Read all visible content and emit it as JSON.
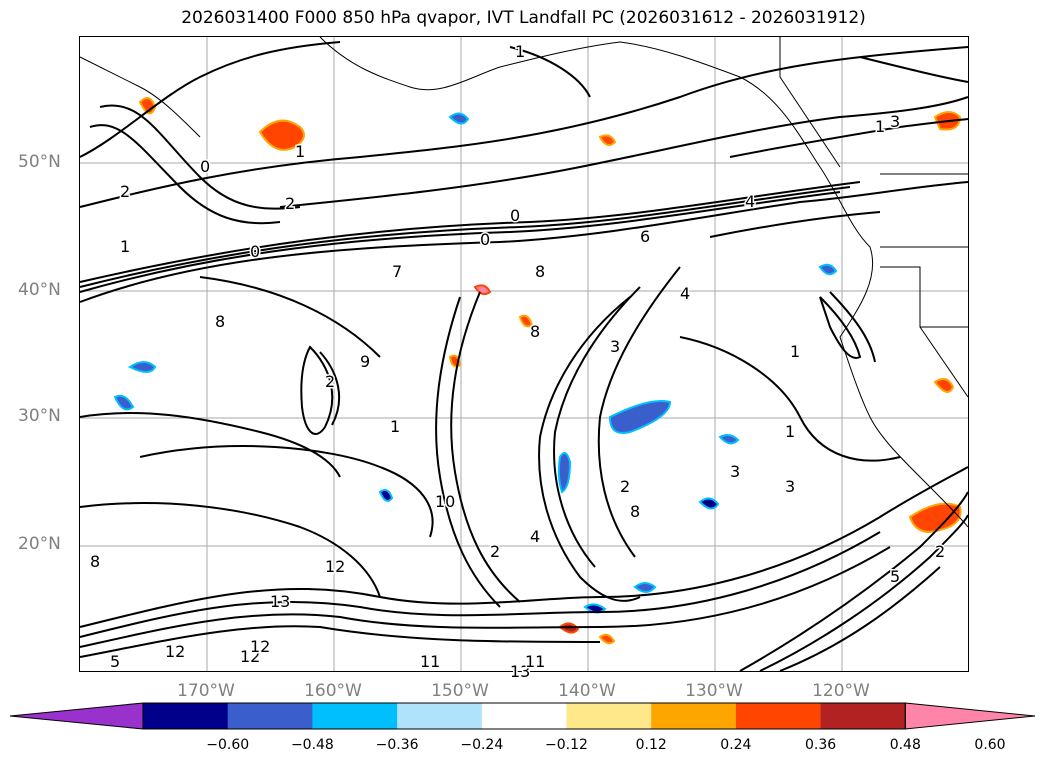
{
  "title": "2026031400 F000 850 hPa qvapor, IVT Landfall PC (2026031612 - 2026031912)",
  "latitude_labels": [
    "50°N",
    "40°N",
    "30°N",
    "20°N"
  ],
  "longitude_labels": [
    "170°W",
    "160°W",
    "150°W",
    "140°W",
    "130°W",
    "120°W"
  ],
  "colorbar": {
    "ticks": [
      "−0.60",
      "−0.48",
      "−0.36",
      "−0.24",
      "−0.12",
      "0.12",
      "0.24",
      "0.36",
      "0.48",
      "0.60"
    ],
    "colors": [
      "#9932cc",
      "#00008b",
      "#3a5fcd",
      "#00bfff",
      "#aee3fb",
      "#ffffff",
      "#ffe88a",
      "#ffa500",
      "#ff4500",
      "#b22222",
      "#ff85a8"
    ]
  },
  "contour_labels": [
    "1",
    "2",
    "0",
    "0",
    "1",
    "0",
    "4",
    "6",
    "7",
    "8",
    "4",
    "3",
    "2",
    "1",
    "1",
    "2",
    "3",
    "1",
    "2",
    "5",
    "8",
    "9",
    "10",
    "12",
    "13",
    "12",
    "12",
    "11",
    "13",
    "5",
    "4",
    "2",
    "1",
    "0",
    "3",
    "3",
    "8",
    "8",
    "1",
    "2",
    "11",
    "12",
    "8"
  ]
}
